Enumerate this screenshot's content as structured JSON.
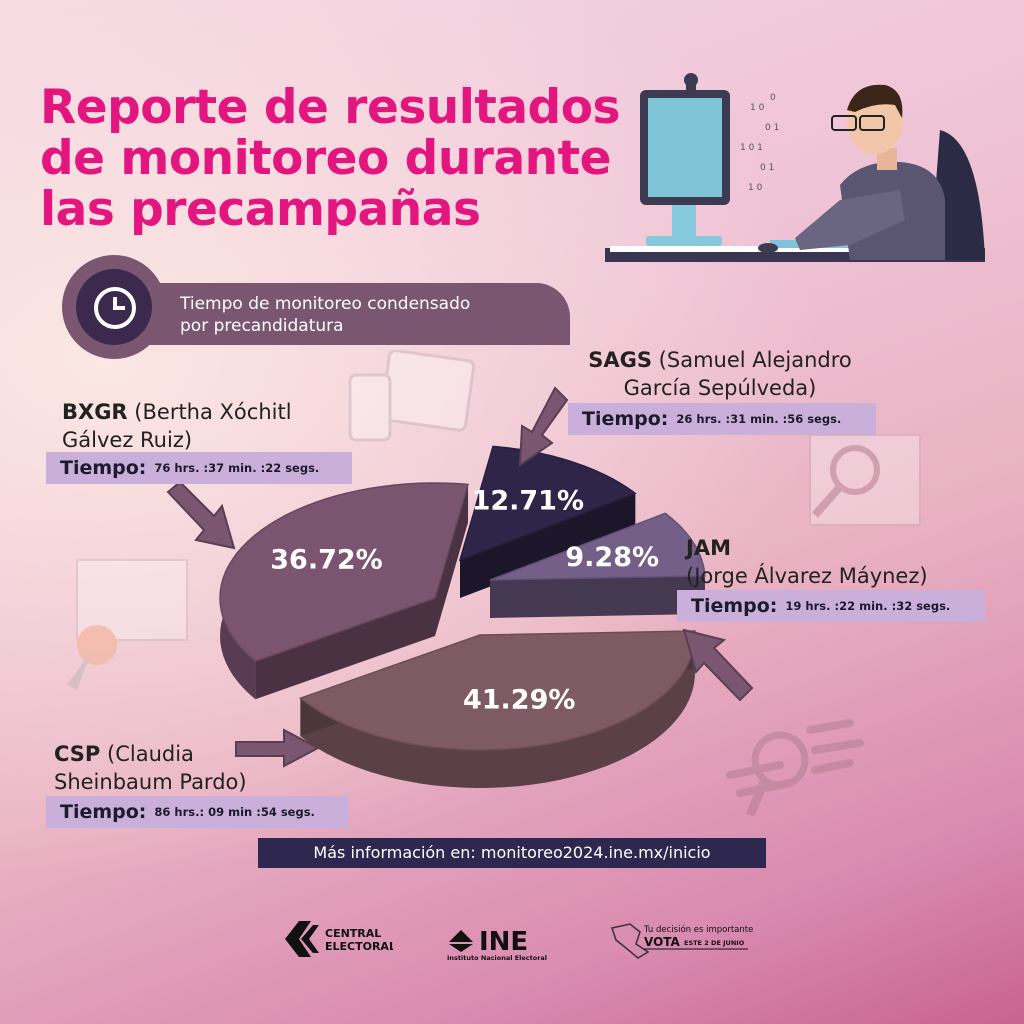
{
  "title_lines": [
    "Reporte de resultados",
    "de monitoreo durante",
    "las precampañas"
  ],
  "subtitle_lines": [
    "Tiempo de monitoreo condensado",
    "por precandidatura"
  ],
  "time_label": "Tiempo:",
  "chart_data": {
    "type": "pie",
    "slices": [
      {
        "code": "CSP",
        "name": "(Claudia Sheinbaum Pardo)",
        "value": 41.29,
        "label": "41.29%",
        "time": "86 hrs.: 09 min :54 segs.",
        "color": "#7e5a63"
      },
      {
        "code": "BXGR",
        "name": "(Bertha Xóchitl Gálvez Ruiz)",
        "value": 36.72,
        "label": "36.72%",
        "time": "76 hrs. :37 min. :22 segs.",
        "color": "#7b5470"
      },
      {
        "code": "SAGS",
        "name": "(Samuel Alejandro García Sepúlveda)",
        "value": 12.71,
        "label": "12.71%",
        "time": "26 hrs. :31 min. :56 segs.",
        "color": "#2f2548"
      },
      {
        "code": "JAM",
        "name": "(Jorge Álvarez Máynez)",
        "value": 9.28,
        "label": "9.28%",
        "time": "19 hrs. :22 min. :32 segs.",
        "color": "#735f88"
      }
    ]
  },
  "candidates": {
    "sags": {
      "code": "SAGS",
      "name_line1": "(Samuel Alejandro",
      "name_line2": "García Sepúlveda)",
      "time": "26 hrs. :31 min. :56 segs."
    },
    "bxgr": {
      "code": "BXGR",
      "name_line1": "(Bertha Xóchitl",
      "name_line2": "Gálvez Ruiz)",
      "time": "76 hrs. :37 min. :22 segs."
    },
    "jam": {
      "code": "JAM",
      "name_line1": "(Jorge Álvarez Máynez)",
      "time": "19 hrs. :22 min. :32 segs."
    },
    "csp": {
      "code": "CSP",
      "name_line1": "(Claudia",
      "name_line2": "Sheinbaum Pardo)",
      "time": "86 hrs.: 09 min :54 segs."
    }
  },
  "more_info": "Más información en: monitoreo2024.ine.mx/inicio",
  "logos": {
    "central_line1": "CENTRAL",
    "central_line2": "ELECTORAL",
    "ine": "INE",
    "ine_sub": "Instituto Nacional Electoral",
    "vota_line1": "Tu decisión es importante",
    "vota_word": "VOTA",
    "vota_line2": "ESTE 2 DE JUNIO"
  },
  "colors": {
    "title": "#e3157f",
    "accent_purple": "#7a5670",
    "time_box": "#c9afd9",
    "dark_navy": "#2e2850"
  }
}
